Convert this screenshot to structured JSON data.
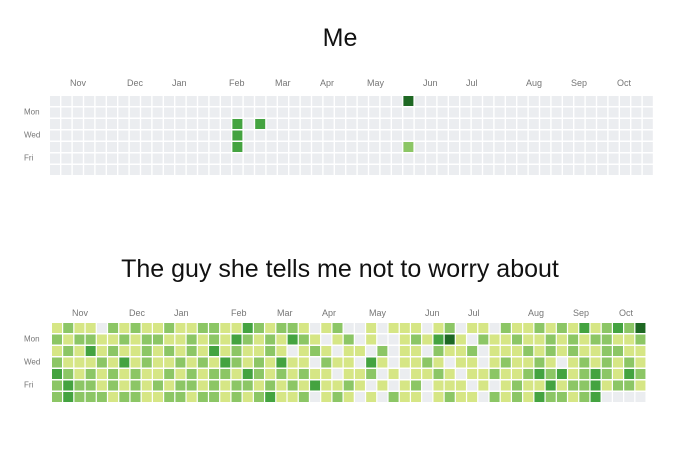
{
  "colors": [
    "#ebedf0",
    "#d6e685",
    "#8cc665",
    "#44a340",
    "#1e6823"
  ],
  "graphs": [
    {
      "title": "Me",
      "months": [
        "Nov",
        "Dec",
        "Jan",
        "Feb",
        "Mar",
        "Apr",
        "May",
        "Jun",
        "Jul",
        "Aug",
        "Sep",
        "Oct"
      ],
      "days": [
        "Mon",
        "Wed",
        "Fri"
      ],
      "levels": [
        [
          0,
          0,
          0,
          0,
          0,
          0,
          0,
          0,
          0,
          0,
          0,
          0,
          0,
          0,
          0,
          0,
          0,
          0,
          0,
          0,
          0,
          0,
          0,
          0,
          0,
          0,
          0,
          0,
          0,
          0,
          0,
          4,
          0,
          0,
          0,
          0,
          0,
          0,
          0,
          0,
          0,
          0,
          0,
          0,
          0,
          0,
          0,
          0,
          0,
          0,
          0,
          0,
          0
        ],
        [
          0,
          0,
          0,
          0,
          0,
          0,
          0,
          0,
          0,
          0,
          0,
          0,
          0,
          0,
          0,
          0,
          0,
          0,
          0,
          0,
          0,
          0,
          0,
          0,
          0,
          0,
          0,
          0,
          0,
          0,
          0,
          0,
          0,
          0,
          0,
          0,
          0,
          0,
          0,
          0,
          0,
          0,
          0,
          0,
          0,
          0,
          0,
          0,
          0,
          0,
          0,
          0,
          0
        ],
        [
          0,
          0,
          0,
          0,
          0,
          0,
          0,
          0,
          0,
          0,
          0,
          0,
          0,
          0,
          0,
          0,
          3,
          0,
          3,
          0,
          0,
          0,
          0,
          0,
          0,
          0,
          0,
          0,
          0,
          0,
          0,
          0,
          0,
          0,
          0,
          0,
          0,
          0,
          0,
          0,
          0,
          0,
          0,
          0,
          0,
          0,
          0,
          0,
          0,
          0,
          0,
          0,
          0
        ],
        [
          0,
          0,
          0,
          0,
          0,
          0,
          0,
          0,
          0,
          0,
          0,
          0,
          0,
          0,
          0,
          0,
          3,
          0,
          0,
          0,
          0,
          0,
          0,
          0,
          0,
          0,
          0,
          0,
          0,
          0,
          0,
          0,
          0,
          0,
          0,
          0,
          0,
          0,
          0,
          0,
          0,
          0,
          0,
          0,
          0,
          0,
          0,
          0,
          0,
          0,
          0,
          0,
          0
        ],
        [
          0,
          0,
          0,
          0,
          0,
          0,
          0,
          0,
          0,
          0,
          0,
          0,
          0,
          0,
          0,
          0,
          3,
          0,
          0,
          0,
          0,
          0,
          0,
          0,
          0,
          0,
          0,
          0,
          0,
          0,
          0,
          2,
          0,
          0,
          0,
          0,
          0,
          0,
          0,
          0,
          0,
          0,
          0,
          0,
          0,
          0,
          0,
          0,
          0,
          0,
          0,
          0,
          0
        ],
        [
          0,
          0,
          0,
          0,
          0,
          0,
          0,
          0,
          0,
          0,
          0,
          0,
          0,
          0,
          0,
          0,
          0,
          0,
          0,
          0,
          0,
          0,
          0,
          0,
          0,
          0,
          0,
          0,
          0,
          0,
          0,
          0,
          0,
          0,
          0,
          0,
          0,
          0,
          0,
          0,
          0,
          0,
          0,
          0,
          0,
          0,
          0,
          0,
          0,
          0,
          0,
          0,
          0
        ],
        [
          0,
          0,
          0,
          0,
          0,
          0,
          0,
          0,
          0,
          0,
          0,
          0,
          0,
          0,
          0,
          0,
          0,
          0,
          0,
          0,
          0,
          0,
          0,
          0,
          0,
          0,
          0,
          0,
          0,
          0,
          0,
          0,
          0,
          0,
          0,
          0,
          0,
          0,
          0,
          0,
          0,
          0,
          0,
          0,
          0,
          0,
          0,
          0,
          0,
          0,
          0,
          0,
          0
        ]
      ]
    },
    {
      "title": "The guy she tells me not to worry about",
      "months": [
        "Nov",
        "Dec",
        "Jan",
        "Feb",
        "Mar",
        "Apr",
        "May",
        "Jun",
        "Jul",
        "Aug",
        "Sep",
        "Oct"
      ],
      "days": [
        "Mon",
        "Wed",
        "Fri"
      ],
      "levels": [
        [
          1,
          2,
          1,
          1,
          0,
          2,
          1,
          2,
          1,
          1,
          2,
          1,
          1,
          2,
          2,
          1,
          1,
          3,
          2,
          1,
          2,
          2,
          1,
          0,
          1,
          2,
          0,
          0,
          1,
          0,
          1,
          1,
          1,
          0,
          1,
          2,
          0,
          1,
          1,
          0,
          2,
          1,
          1,
          2,
          1,
          2,
          1,
          3,
          1,
          2,
          3,
          2,
          4
        ],
        [
          2,
          1,
          2,
          2,
          1,
          1,
          2,
          1,
          2,
          2,
          1,
          1,
          2,
          1,
          2,
          1,
          3,
          2,
          1,
          2,
          1,
          3,
          2,
          1,
          0,
          1,
          2,
          0,
          1,
          0,
          0,
          1,
          2,
          1,
          3,
          4,
          1,
          0,
          2,
          1,
          1,
          2,
          1,
          1,
          2,
          1,
          2,
          1,
          2,
          2,
          1,
          1,
          2
        ],
        [
          1,
          2,
          1,
          3,
          1,
          2,
          1,
          1,
          2,
          1,
          2,
          1,
          2,
          1,
          3,
          1,
          2,
          1,
          1,
          2,
          1,
          0,
          1,
          2,
          1,
          0,
          1,
          1,
          0,
          2,
          0,
          1,
          1,
          0,
          2,
          1,
          1,
          2,
          0,
          1,
          1,
          1,
          2,
          1,
          2,
          1,
          2,
          1,
          1,
          2,
          2,
          1,
          1
        ],
        [
          2,
          1,
          1,
          1,
          2,
          1,
          3,
          1,
          2,
          1,
          1,
          2,
          1,
          2,
          1,
          3,
          2,
          1,
          2,
          1,
          3,
          1,
          1,
          0,
          2,
          1,
          1,
          0,
          3,
          1,
          0,
          1,
          1,
          2,
          1,
          0,
          1,
          1,
          0,
          1,
          2,
          1,
          1,
          2,
          1,
          0,
          1,
          2,
          1,
          2,
          1,
          2,
          1
        ],
        [
          3,
          2,
          1,
          2,
          1,
          2,
          1,
          2,
          1,
          1,
          2,
          1,
          2,
          1,
          2,
          2,
          1,
          3,
          2,
          1,
          2,
          1,
          2,
          1,
          1,
          0,
          1,
          1,
          2,
          0,
          1,
          0,
          1,
          1,
          2,
          1,
          0,
          1,
          1,
          2,
          1,
          1,
          2,
          3,
          2,
          3,
          1,
          2,
          3,
          2,
          1,
          3,
          2
        ],
        [
          2,
          3,
          2,
          2,
          1,
          2,
          1,
          2,
          1,
          2,
          1,
          2,
          2,
          1,
          2,
          1,
          2,
          2,
          1,
          2,
          1,
          2,
          1,
          3,
          1,
          1,
          2,
          1,
          0,
          1,
          0,
          1,
          2,
          0,
          1,
          1,
          1,
          0,
          1,
          0,
          1,
          2,
          1,
          1,
          3,
          1,
          2,
          2,
          3,
          1,
          2,
          2,
          1
        ],
        [
          2,
          3,
          2,
          2,
          2,
          1,
          2,
          2,
          1,
          1,
          2,
          2,
          1,
          2,
          2,
          1,
          2,
          1,
          2,
          3,
          1,
          1,
          2,
          0,
          1,
          2,
          1,
          0,
          1,
          0,
          2,
          1,
          1,
          0,
          1,
          2,
          1,
          1,
          0,
          2,
          1,
          2,
          1,
          3,
          2,
          2,
          1,
          2,
          3,
          0,
          0,
          0,
          0
        ]
      ]
    }
  ]
}
